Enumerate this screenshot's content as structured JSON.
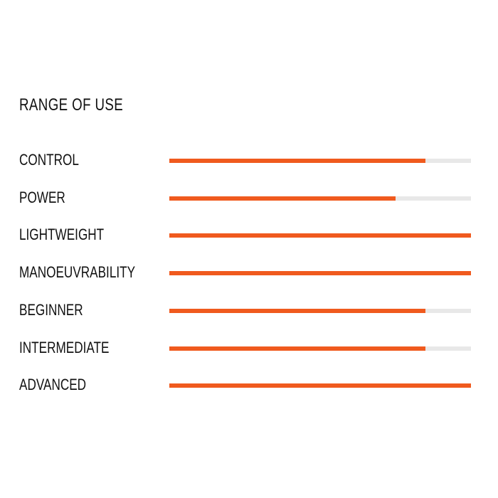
{
  "chart_data": {
    "type": "bar",
    "orientation": "horizontal",
    "title": "RANGE OF USE",
    "categories": [
      "CONTROL",
      "POWER",
      "LIGHTWEIGHT",
      "MANOEUVRABILITY",
      "BEGINNER",
      "INTERMEDIATE",
      "ADVANCED"
    ],
    "values": [
      0.85,
      0.75,
      1.0,
      1.0,
      0.85,
      0.85,
      1.0
    ],
    "xlim": [
      0,
      1
    ],
    "grid": false,
    "colors": {
      "fill": "#f05a1e",
      "track": "#e8e8e8"
    }
  }
}
